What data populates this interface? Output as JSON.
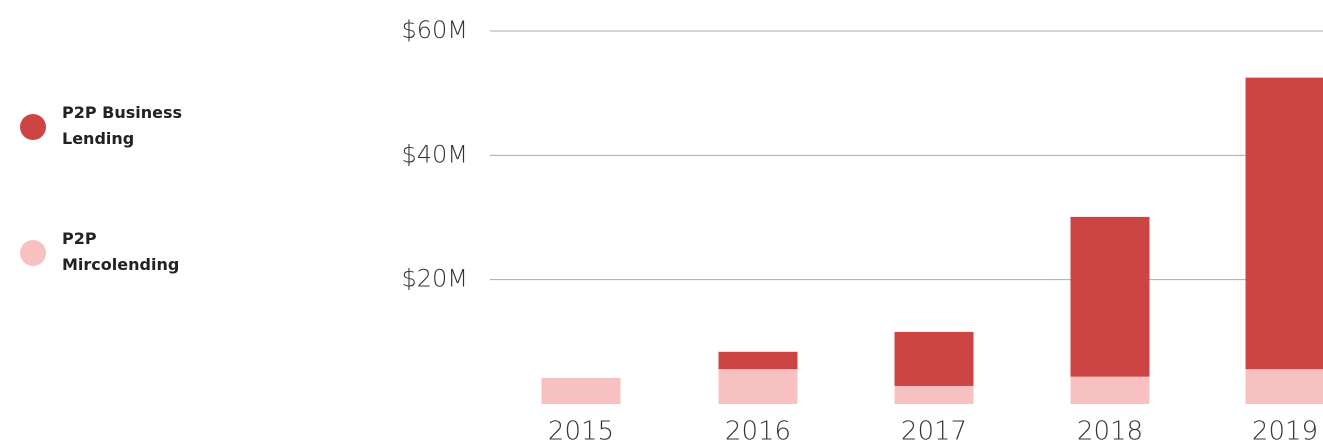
{
  "chart_data": {
    "type": "stacked_bar",
    "categories": [
      "2015",
      "2016",
      "2017",
      "2018",
      "2019"
    ],
    "series": [
      {
        "name": "P2P Mircolending",
        "color": "#f8c1c1",
        "values": [
          4.2,
          5.6,
          2.9,
          4.4,
          5.6
        ]
      },
      {
        "name": "P2P Business Lending",
        "color": "#cc4542",
        "values": [
          0,
          2.8,
          8.7,
          25.7,
          46.9
        ]
      }
    ],
    "ylim": [
      0,
      60
    ],
    "yticks": [
      {
        "value": 20,
        "label": "$20M"
      },
      {
        "value": 40,
        "label": "$40M"
      },
      {
        "value": 60,
        "label": "$60M"
      }
    ],
    "grid": true
  }
}
